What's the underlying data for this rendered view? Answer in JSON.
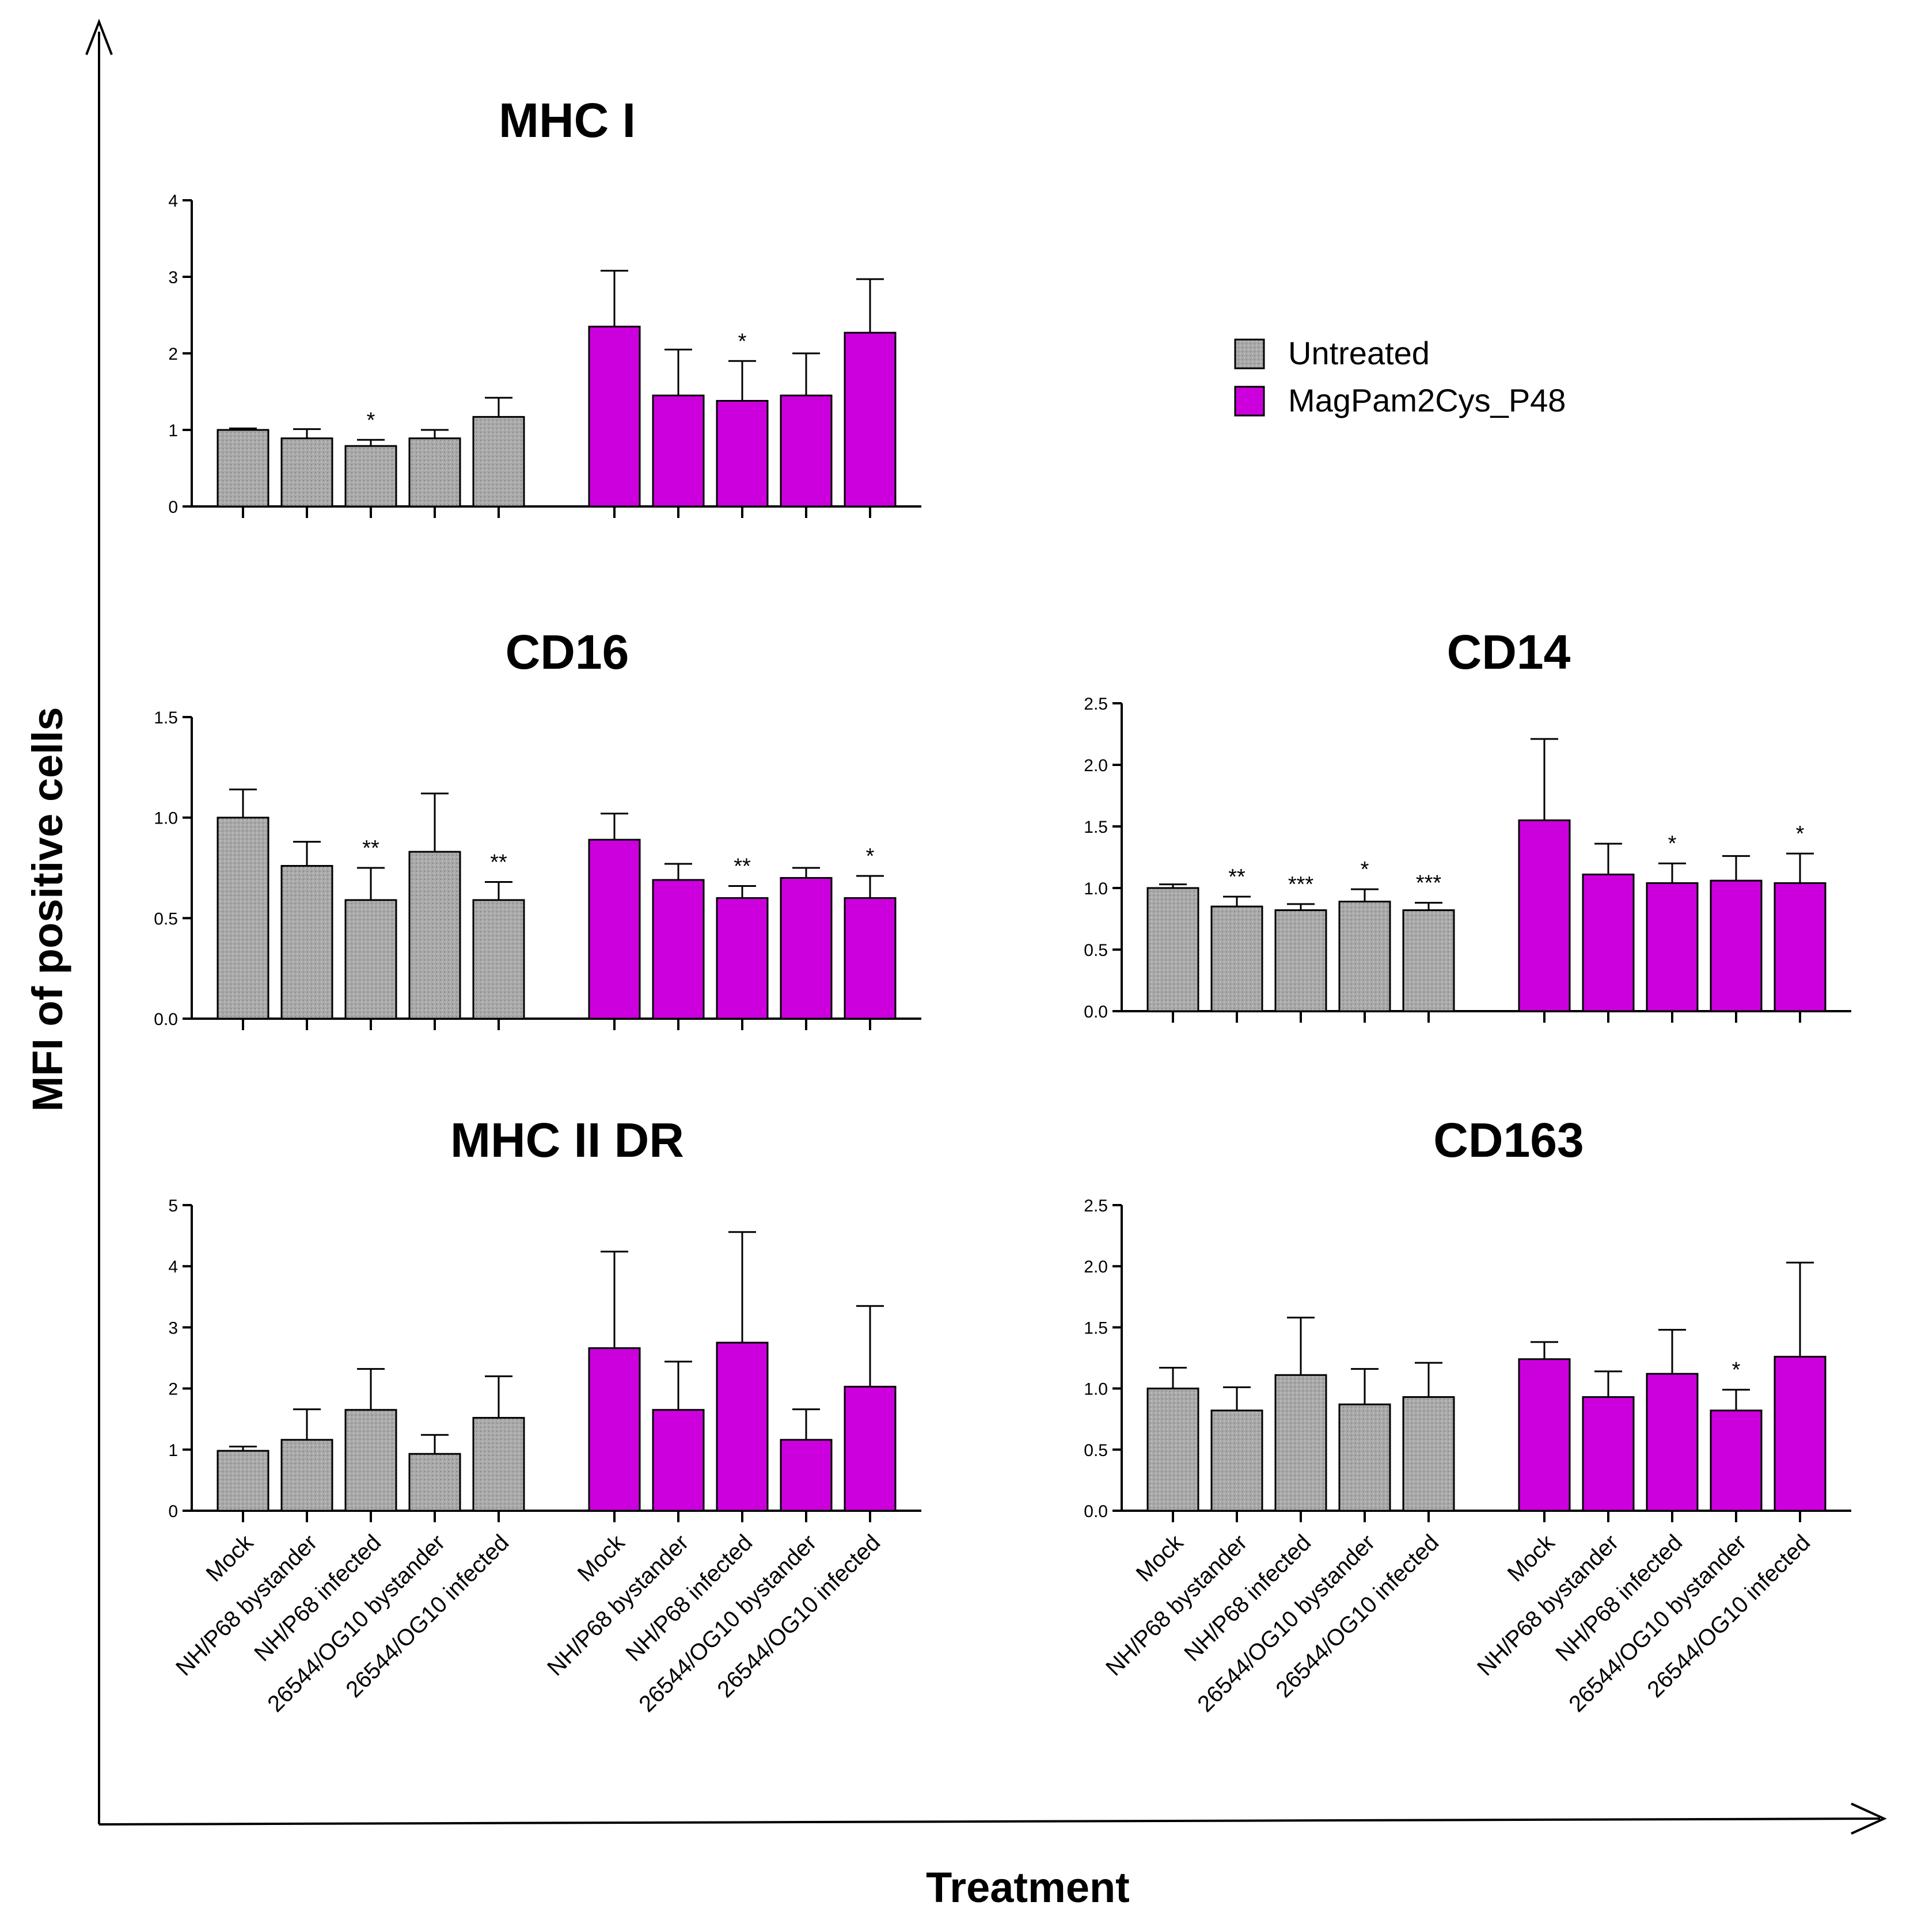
{
  "colors": {
    "untreated": "#a9a9a9",
    "treated": "#cc00dd",
    "axis": "#000000"
  },
  "figure": {
    "x_axis_title": "Treatment",
    "y_axis_title": "MFI of positive cells"
  },
  "legend": {
    "items": [
      {
        "label": "Untreated",
        "color": "#a9a9a9",
        "pattern": "dotted"
      },
      {
        "label": "MagPam2Cys_P48",
        "color": "#cc00dd",
        "pattern": "solid"
      }
    ]
  },
  "chart_data": [
    {
      "type": "bar",
      "title": "MHC I",
      "categories": [
        "Mock",
        "NH/P68 bystander",
        "NH/P68 infected",
        "26544/OG10 bystander",
        "26544/OG10 infected"
      ],
      "show_category_labels": false,
      "yticks": [
        "0",
        "1",
        "2",
        "3",
        "4"
      ],
      "ylim": [
        0,
        4
      ],
      "series": [
        {
          "name": "Untreated",
          "values": [
            1.0,
            0.89,
            0.79,
            0.89,
            1.17
          ],
          "errors": [
            0.02,
            0.12,
            0.08,
            0.11,
            0.25
          ],
          "significance": [
            "",
            "",
            "*",
            "",
            ""
          ]
        },
        {
          "name": "MagPam2Cys_P48",
          "values": [
            2.35,
            1.45,
            1.38,
            1.45,
            2.27
          ],
          "errors": [
            0.73,
            0.6,
            0.52,
            0.55,
            0.7
          ],
          "significance": [
            "",
            "",
            "*",
            "",
            ""
          ]
        }
      ]
    },
    {
      "type": "bar",
      "title": "CD16",
      "categories": [
        "Mock",
        "NH/P68 bystander",
        "NH/P68 infected",
        "26544/OG10 bystander",
        "26544/OG10 infected"
      ],
      "show_category_labels": false,
      "yticks": [
        "0.0",
        "0.5",
        "1.0",
        "1.5"
      ],
      "ylim": [
        0,
        1.5
      ],
      "series": [
        {
          "name": "Untreated",
          "values": [
            1.0,
            0.76,
            0.59,
            0.83,
            0.59
          ],
          "errors": [
            0.14,
            0.12,
            0.16,
            0.29,
            0.09
          ],
          "significance": [
            "",
            "",
            "**",
            "",
            "**"
          ]
        },
        {
          "name": "MagPam2Cys_P48",
          "values": [
            0.89,
            0.69,
            0.6,
            0.7,
            0.6
          ],
          "errors": [
            0.13,
            0.08,
            0.06,
            0.05,
            0.11
          ],
          "significance": [
            "",
            "",
            "**",
            "",
            "*"
          ]
        }
      ]
    },
    {
      "type": "bar",
      "title": "CD14",
      "categories": [
        "Mock",
        "NH/P68 bystander",
        "NH/P68 infected",
        "26544/OG10 bystander",
        "26544/OG10 infected"
      ],
      "show_category_labels": false,
      "yticks": [
        "0.0",
        "0.5",
        "1.0",
        "1.5",
        "2.0",
        "2.5"
      ],
      "ylim": [
        0,
        2.5
      ],
      "series": [
        {
          "name": "Untreated",
          "values": [
            1.0,
            0.85,
            0.82,
            0.89,
            0.82
          ],
          "errors": [
            0.03,
            0.08,
            0.05,
            0.1,
            0.06
          ],
          "significance": [
            "",
            "**",
            "***",
            "*",
            "***"
          ]
        },
        {
          "name": "MagPam2Cys_P48",
          "values": [
            1.55,
            1.11,
            1.04,
            1.06,
            1.04
          ],
          "errors": [
            0.66,
            0.25,
            0.16,
            0.2,
            0.24
          ],
          "significance": [
            "",
            "",
            "*",
            "",
            "*"
          ]
        }
      ]
    },
    {
      "type": "bar",
      "title": "MHC II DR",
      "categories": [
        "Mock",
        "NH/P68 bystander",
        "NH/P68 infected",
        "26544/OG10 bystander",
        "26544/OG10 infected"
      ],
      "show_category_labels": true,
      "yticks": [
        "0",
        "1",
        "2",
        "3",
        "4",
        "5"
      ],
      "ylim": [
        0,
        5
      ],
      "series": [
        {
          "name": "Untreated",
          "values": [
            0.98,
            1.16,
            1.65,
            0.93,
            1.52
          ],
          "errors": [
            0.07,
            0.5,
            0.67,
            0.31,
            0.68
          ],
          "significance": [
            "",
            "",
            "",
            "",
            ""
          ]
        },
        {
          "name": "MagPam2Cys_P48",
          "values": [
            2.66,
            1.65,
            2.75,
            1.16,
            2.03
          ],
          "errors": [
            1.58,
            0.79,
            1.81,
            0.5,
            1.32
          ],
          "significance": [
            "",
            "",
            "",
            "",
            ""
          ]
        }
      ]
    },
    {
      "type": "bar",
      "title": "CD163",
      "categories": [
        "Mock",
        "NH/P68 bystander",
        "NH/P68 infected",
        "26544/OG10 bystander",
        "26544/OG10 infected"
      ],
      "show_category_labels": true,
      "yticks": [
        "0.0",
        "0.5",
        "1.0",
        "1.5",
        "2.0",
        "2.5"
      ],
      "ylim": [
        0,
        2.5
      ],
      "series": [
        {
          "name": "Untreated",
          "values": [
            1.0,
            0.82,
            1.11,
            0.87,
            0.93
          ],
          "errors": [
            0.17,
            0.19,
            0.47,
            0.29,
            0.28
          ],
          "significance": [
            "",
            "",
            "",
            "",
            ""
          ]
        },
        {
          "name": "MagPam2Cys_P48",
          "values": [
            1.24,
            0.93,
            1.12,
            0.82,
            1.26
          ],
          "errors": [
            0.14,
            0.21,
            0.36,
            0.17,
            0.77
          ],
          "significance": [
            "",
            "",
            "",
            "*",
            ""
          ]
        }
      ]
    }
  ]
}
